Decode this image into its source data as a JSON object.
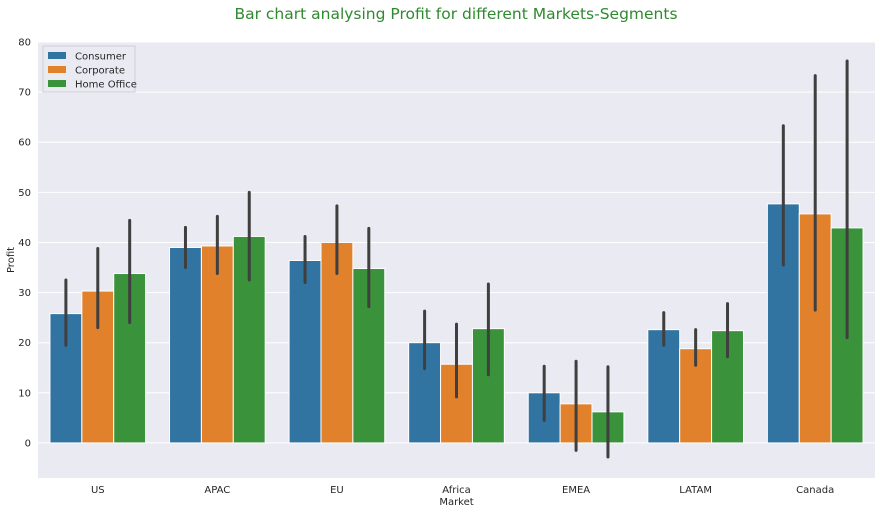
{
  "chart_data": {
    "type": "bar",
    "title": "Bar chart analysing Profit for different Markets-Segments",
    "xlabel": "Market",
    "ylabel": "Profit",
    "ylim": [
      -7,
      80
    ],
    "yticks": [
      0,
      10,
      20,
      30,
      40,
      50,
      60,
      70,
      80
    ],
    "grid": true,
    "legend_position": "top-left",
    "categories": [
      "US",
      "APAC",
      "EU",
      "Africa",
      "EMEA",
      "LATAM",
      "Canada"
    ],
    "series": [
      {
        "name": "Consumer",
        "color": "#3274a1",
        "values": [
          25.8,
          39.0,
          36.4,
          20.0,
          10.0,
          22.6,
          47.7
        ],
        "ci_low": [
          19.5,
          35.0,
          32.0,
          14.8,
          4.5,
          19.5,
          35.5
        ],
        "ci_high": [
          32.5,
          43.0,
          41.2,
          26.3,
          15.3,
          26.0,
          63.3
        ]
      },
      {
        "name": "Corporate",
        "color": "#e1812c",
        "values": [
          30.3,
          39.3,
          40.0,
          15.7,
          7.8,
          18.8,
          45.7
        ],
        "ci_low": [
          23.0,
          33.8,
          33.8,
          9.2,
          -1.5,
          15.5,
          26.5
        ],
        "ci_high": [
          38.8,
          45.2,
          47.3,
          23.7,
          16.3,
          22.6,
          73.3
        ]
      },
      {
        "name": "Home Office",
        "color": "#3a923a",
        "values": [
          33.8,
          41.2,
          34.8,
          22.8,
          6.2,
          22.4,
          42.9
        ],
        "ci_low": [
          24.0,
          32.5,
          27.2,
          13.6,
          -2.8,
          17.2,
          21.0
        ],
        "ci_high": [
          44.4,
          50.0,
          42.8,
          31.7,
          15.2,
          27.8,
          76.2
        ]
      }
    ]
  }
}
